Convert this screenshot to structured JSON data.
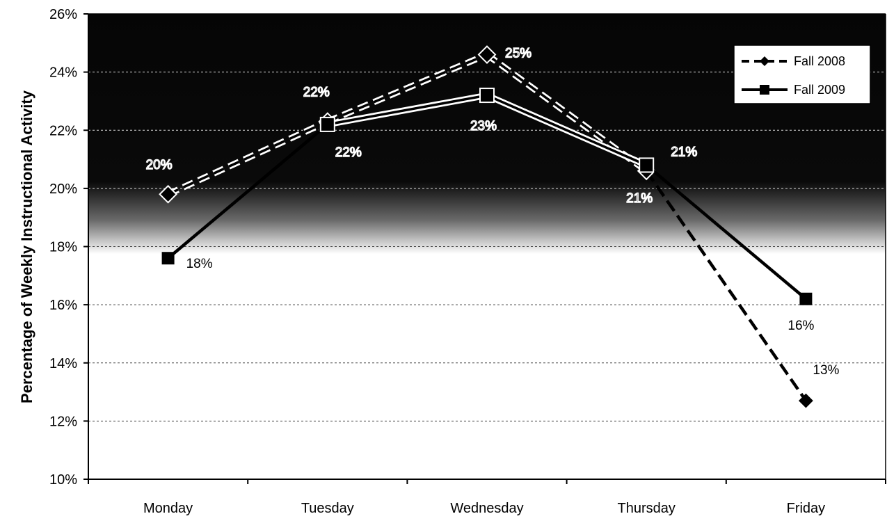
{
  "chart_data": {
    "type": "line",
    "title": "",
    "xlabel": "",
    "ylabel": "Percentage of Weekly Instructional Activity",
    "categories": [
      "Monday",
      "Tuesday",
      "Wednesday",
      "Thursday",
      "Friday"
    ],
    "ylim": [
      10,
      26
    ],
    "yticks": [
      "10%",
      "12%",
      "14%",
      "16%",
      "18%",
      "20%",
      "22%",
      "24%",
      "26%"
    ],
    "grid": true,
    "legend_position": "top-right",
    "series": [
      {
        "name": "Fall 2008",
        "values": [
          19.8,
          22.3,
          24.6,
          20.6,
          12.7
        ],
        "labels": [
          "20%",
          "22%",
          "25%",
          "21%",
          "13%"
        ],
        "style": "dashed",
        "marker": "diamond"
      },
      {
        "name": "Fall 2009",
        "values": [
          17.6,
          22.2,
          23.2,
          20.8,
          16.2
        ],
        "labels": [
          "18%",
          "22%",
          "23%",
          "21%",
          "16%"
        ],
        "style": "solid",
        "marker": "square"
      }
    ],
    "colors": {
      "line": "#000000",
      "dark_band": "#050505",
      "plot_bg": "#ffffff"
    }
  }
}
